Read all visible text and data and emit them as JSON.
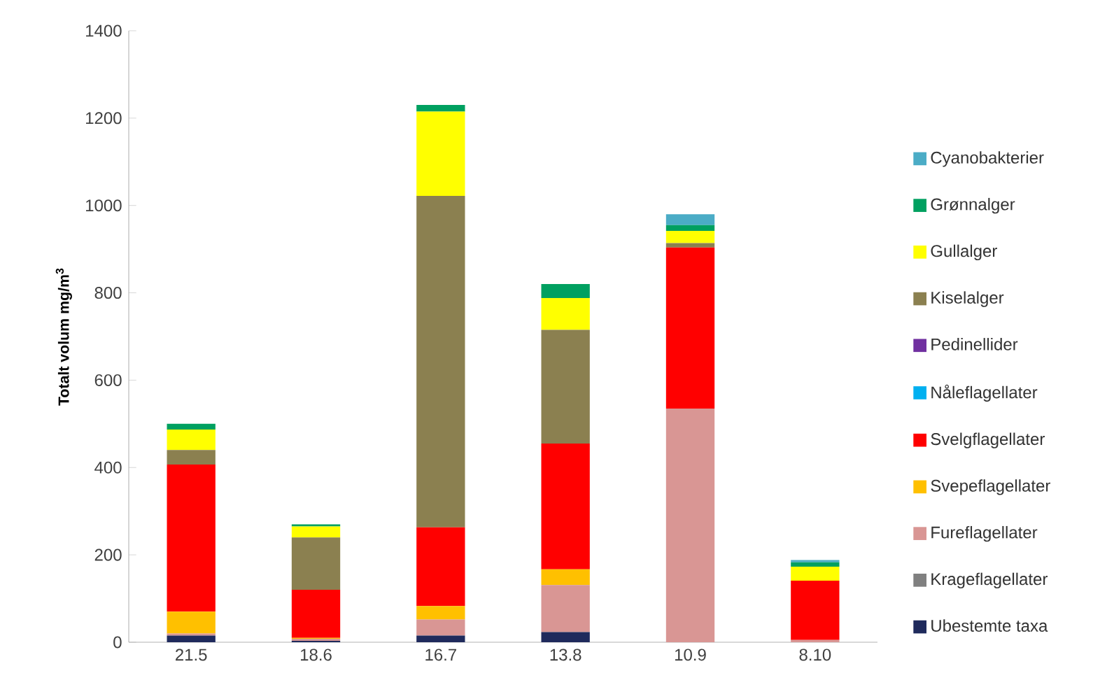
{
  "chart_data": {
    "type": "bar",
    "stacked": true,
    "ylabel": "Totalt volum mg/m$^{3}$",
    "categories": [
      "21.5",
      "18.6",
      "16.7",
      "13.8",
      "10.9",
      "8.10"
    ],
    "ylim": [
      0,
      1400
    ],
    "yticks": [
      0,
      200,
      400,
      600,
      800,
      1000,
      1200,
      1400
    ],
    "grid": false,
    "legend": "right",
    "series": [
      {
        "name": "Ubestemte taxa",
        "color": "#1f2a5c",
        "values": [
          15,
          3,
          15,
          23,
          0,
          0
        ]
      },
      {
        "name": "Krageflagellater",
        "color": "#808080",
        "values": [
          0,
          0,
          0,
          0,
          0,
          0
        ]
      },
      {
        "name": "Fureflagellater",
        "color": "#d99694",
        "values": [
          5,
          5,
          37,
          108,
          535,
          5
        ]
      },
      {
        "name": "Svepeflagellater",
        "color": "#ffc000",
        "values": [
          50,
          2,
          31,
          36,
          0,
          0
        ]
      },
      {
        "name": "Svelgflagellater",
        "color": "#ff0000",
        "values": [
          337,
          110,
          180,
          288,
          369,
          136
        ]
      },
      {
        "name": "Nåleflagellater",
        "color": "#00b0f0",
        "values": [
          0,
          0,
          0,
          0,
          0,
          0
        ]
      },
      {
        "name": "Pedinellider",
        "color": "#7030a0",
        "values": [
          0,
          0,
          0,
          0,
          0,
          0
        ]
      },
      {
        "name": "Kiselalger",
        "color": "#8b8050",
        "values": [
          33,
          120,
          759,
          260,
          10,
          0
        ]
      },
      {
        "name": "Gullalger",
        "color": "#ffff00",
        "values": [
          47,
          25,
          193,
          73,
          28,
          32
        ]
      },
      {
        "name": "Grønnalger",
        "color": "#00a060",
        "values": [
          13,
          5,
          15,
          32,
          13,
          10
        ]
      },
      {
        "name": "Cyanobakterier",
        "color": "#4bacc6",
        "values": [
          0,
          0,
          0,
          0,
          25,
          5
        ]
      }
    ]
  }
}
